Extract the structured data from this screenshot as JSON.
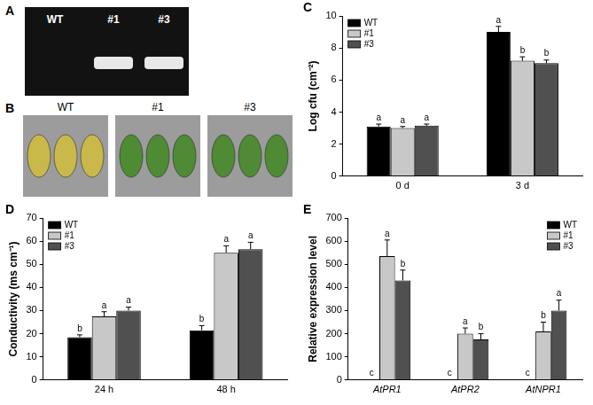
{
  "gel": {
    "letter": "A",
    "lanes": [
      "WT",
      "#1",
      "#3"
    ],
    "bands": [
      false,
      true,
      true
    ]
  },
  "photos": {
    "letter": "B",
    "labels": [
      "WT",
      "#1",
      "#3"
    ],
    "leaf_colors": [
      "#c9b84a",
      "#4f8a34",
      "#4f8a34"
    ]
  },
  "chart_data": [
    {
      "type": "bar",
      "letter": "C",
      "y_label": "Log cfu (cm⁻²)",
      "categories": [
        "0 d",
        "3 d"
      ],
      "series": [
        {
          "name": "WT",
          "color": "#000000",
          "values": [
            3.1,
            9.0
          ],
          "errors": [
            0.15,
            0.35
          ],
          "letters": [
            "a",
            "a"
          ]
        },
        {
          "name": "#1",
          "color": "#c8c8c8",
          "values": [
            3.0,
            7.2
          ],
          "errors": [
            0.1,
            0.25
          ],
          "letters": [
            "a",
            "b"
          ]
        },
        {
          "name": "#3",
          "color": "#505050",
          "values": [
            3.15,
            7.05
          ],
          "errors": [
            0.1,
            0.2
          ],
          "letters": [
            "a",
            "b"
          ]
        }
      ],
      "ylim": [
        0,
        10
      ],
      "yticks": [
        0,
        2,
        4,
        6,
        8,
        10
      ],
      "grid": false,
      "legend": "upper left"
    },
    {
      "type": "bar",
      "letter": "D",
      "y_label": "Conductivity (ms cm⁻¹)",
      "categories": [
        "24 h",
        "48 h"
      ],
      "series": [
        {
          "name": "WT",
          "color": "#000000",
          "values": [
            18.5,
            21.5
          ],
          "errors": [
            1,
            2
          ],
          "letters": [
            "b",
            "b"
          ]
        },
        {
          "name": "#1",
          "color": "#c8c8c8",
          "values": [
            27.5,
            55
          ],
          "errors": [
            2,
            3
          ],
          "letters": [
            "a",
            "a"
          ]
        },
        {
          "name": "#3",
          "color": "#505050",
          "values": [
            30,
            56.5
          ],
          "errors": [
            1.5,
            3
          ],
          "letters": [
            "a",
            "a"
          ]
        }
      ],
      "ylim": [
        0,
        70
      ],
      "yticks": [
        0,
        10,
        20,
        30,
        40,
        50,
        60,
        70
      ],
      "grid": false,
      "legend": "upper left"
    },
    {
      "type": "bar",
      "letter": "E",
      "y_label": "Relative expression level",
      "categories": [
        "AtPR1",
        "AtPR2",
        "AtNPR1"
      ],
      "series": [
        {
          "name": "WT",
          "color": "#000000",
          "values": [
            1,
            1,
            1
          ],
          "errors": [
            0,
            0,
            0
          ],
          "letters": [
            "c",
            "c",
            "c"
          ]
        },
        {
          "name": "#1",
          "color": "#c8c8c8",
          "values": [
            535,
            200,
            210
          ],
          "errors": [
            70,
            25,
            40
          ],
          "letters": [
            "a",
            "a",
            "b"
          ]
        },
        {
          "name": "#3",
          "color": "#505050",
          "values": [
            430,
            175,
            300
          ],
          "errors": [
            45,
            25,
            45
          ],
          "letters": [
            "b",
            "b",
            "a"
          ]
        }
      ],
      "ylim": [
        0,
        700
      ],
      "yticks": [
        0,
        100,
        200,
        300,
        400,
        500,
        600,
        700
      ],
      "grid": false,
      "legend": "upper right"
    }
  ]
}
